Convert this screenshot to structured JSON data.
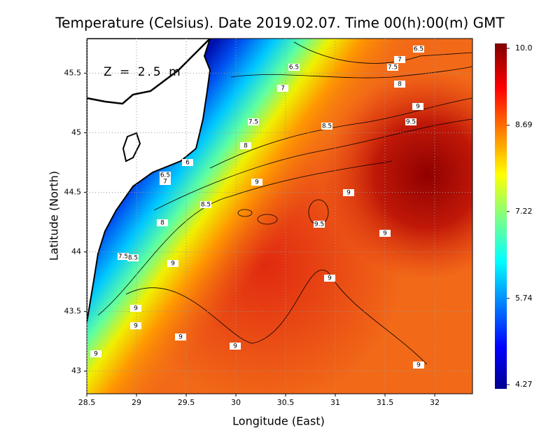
{
  "chart_data": {
    "type": "heatmap",
    "title": "Temperature (Celsius). Date 2019.02.07. Time 00(h):00(m) GMT",
    "annotation": "Z = 2.5 m",
    "x_label": "Longitude (East)",
    "y_label": "Latitude (North)",
    "xlim": [
      28.5,
      32.38
    ],
    "ylim": [
      42.81,
      45.79
    ],
    "xticks": [
      28.5,
      29,
      29.5,
      30,
      30.5,
      31,
      31.5,
      32
    ],
    "yticks": [
      43,
      43.5,
      44,
      44.5,
      45,
      45.5
    ],
    "grid": true,
    "clim": [
      4.27,
      10.0
    ],
    "cticks": [
      4.27,
      5.74,
      7.22,
      8.69,
      {
        "value": 10.0,
        "label": "10.0"
      }
    ],
    "contour_labels": [
      6.5,
      7,
      7.5,
      8,
      6.5,
      7,
      7.5,
      8.5,
      9,
      9.5,
      8,
      6,
      6.5,
      7,
      9,
      9,
      8.5,
      8,
      9.5,
      9,
      7.5,
      8.5,
      9,
      9,
      9,
      9,
      9,
      9,
      9,
      9
    ]
  }
}
